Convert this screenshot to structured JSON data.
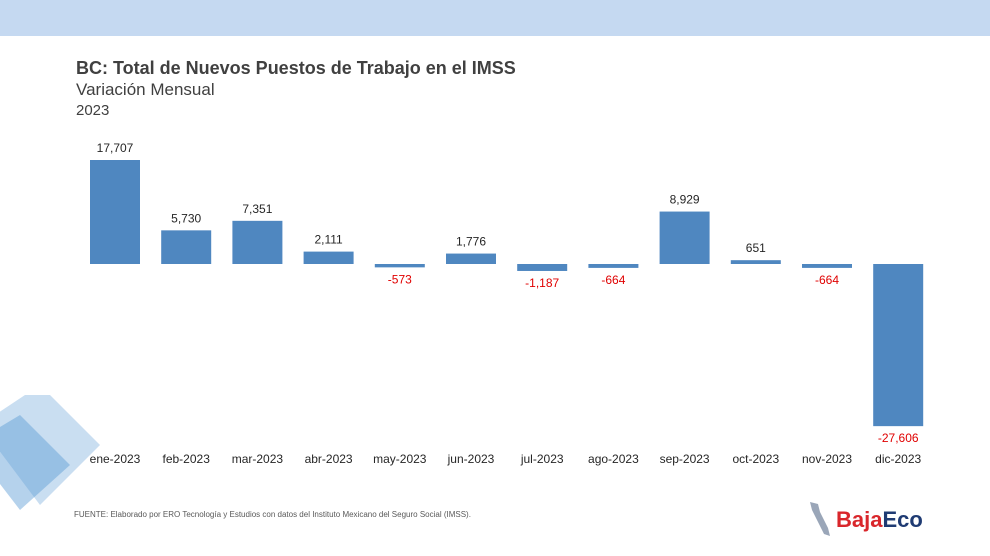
{
  "header": {
    "title": "BC: Total de Nuevos Puestos de Trabajo en el IMSS",
    "subtitle": "Variación Mensual",
    "year": "2023"
  },
  "footer": {
    "source": "FUENTE: Elaborado por ERO Tecnología y Estudios con datos del Instituto Mexicano del Seguro Social (IMSS).",
    "logo_part1": "Baja",
    "logo_part2": "Eco"
  },
  "colors": {
    "top_band": "#c5d9f1",
    "bar": "#4f87c0",
    "positive_label": "#262626",
    "negative_label": "#e00000",
    "logo_red": "#d9262b",
    "logo_blue": "#1f3b73"
  },
  "chart_data": {
    "type": "bar",
    "title": "BC: Total de Nuevos Puestos de Trabajo en el IMSS",
    "subtitle": "Variación Mensual",
    "xlabel": "",
    "ylabel": "",
    "grid": false,
    "categories": [
      "ene-2023",
      "feb-2023",
      "mar-2023",
      "abr-2023",
      "may-2023",
      "jun-2023",
      "jul-2023",
      "ago-2023",
      "sep-2023",
      "oct-2023",
      "nov-2023",
      "dic-2023"
    ],
    "values": [
      17707,
      5730,
      7351,
      2111,
      -573,
      1776,
      -1187,
      -664,
      8929,
      651,
      -664,
      -27606
    ],
    "value_labels": [
      "17,707",
      "5,730",
      "7,351",
      "2,111",
      "-573",
      "1,776",
      "-1,187",
      "-664",
      "8,929",
      "651",
      "-664",
      "-27,606"
    ]
  }
}
